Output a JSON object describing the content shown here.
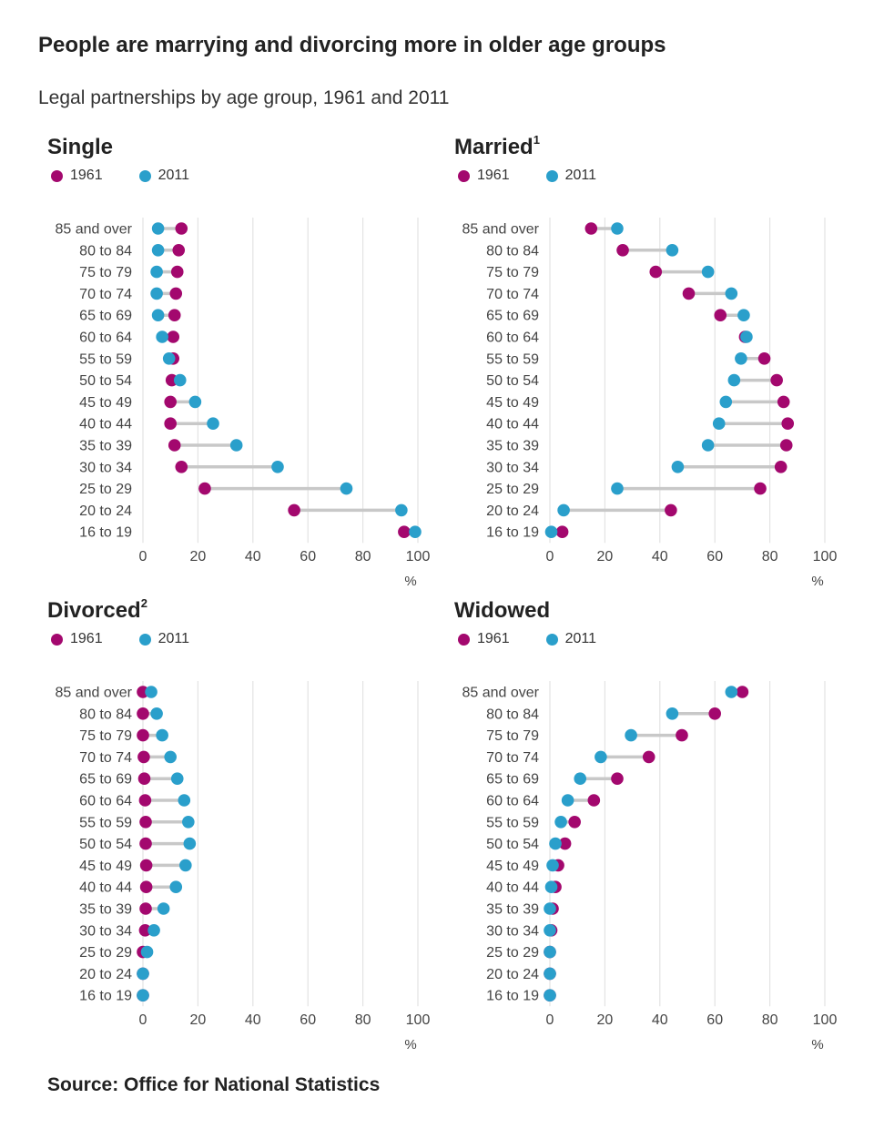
{
  "title": "People are marrying and divorcing more in older age groups",
  "subtitle": "Legal partnerships by age group, 1961 and 2011",
  "source": "Source: Office for National Statistics",
  "colors": {
    "y1961": "#a3086e",
    "y2011": "#2a9fcb",
    "connector": "#c8c8c8",
    "grid": "#e3e3e3"
  },
  "chart_data": [
    {
      "type": "dot-plot",
      "title": "Single",
      "title_sup": "",
      "legend": [
        "1961",
        "2011"
      ],
      "categories": [
        "85 and over",
        "80 to 84",
        "75 to 79",
        "70 to 74",
        "65 to 69",
        "60 to 64",
        "55 to 59",
        "50 to 54",
        "45 to 49",
        "40 to 44",
        "35 to 39",
        "30 to 34",
        "25 to 29",
        "20 to 24",
        "16 to 19"
      ],
      "series": [
        {
          "name": "1961",
          "values": [
            14,
            13,
            12.5,
            12,
            11.5,
            11,
            11,
            10.5,
            10,
            10,
            11.5,
            14,
            22.5,
            55,
            95
          ]
        },
        {
          "name": "2011",
          "values": [
            5.5,
            5.5,
            5,
            5,
            5.5,
            7,
            9.5,
            13.5,
            19,
            25.5,
            34,
            49,
            74,
            94,
            99
          ]
        }
      ],
      "xlim": [
        0,
        100
      ],
      "xticks": [
        "0",
        "20",
        "40",
        "60",
        "80",
        "100"
      ],
      "xunit": "%"
    },
    {
      "type": "dot-plot",
      "title": "Married",
      "title_sup": "1",
      "legend": [
        "1961",
        "2011"
      ],
      "categories": [
        "85 and over",
        "80 to 84",
        "75 to 79",
        "70 to 74",
        "65 to 69",
        "60 to 64",
        "55 to 59",
        "50 to 54",
        "45 to 49",
        "40 to 44",
        "35 to 39",
        "30 to 34",
        "25 to 29",
        "20 to 24",
        "16 to 19"
      ],
      "series": [
        {
          "name": "1961",
          "values": [
            15,
            26.5,
            38.5,
            50.5,
            62,
            71,
            78,
            82.5,
            85,
            86.5,
            86,
            84,
            76.5,
            44,
            4.5
          ]
        },
        {
          "name": "2011",
          "values": [
            24.5,
            44.5,
            57.5,
            66,
            70.5,
            71.5,
            69.5,
            67,
            64,
            61.5,
            57.5,
            46.5,
            24.5,
            5,
            0.5
          ]
        }
      ],
      "xlim": [
        0,
        100
      ],
      "xticks": [
        "0",
        "20",
        "40",
        "60",
        "80",
        "100"
      ],
      "xunit": "%"
    },
    {
      "type": "dot-plot",
      "title": "Divorced",
      "title_sup": "2",
      "legend": [
        "1961",
        "2011"
      ],
      "categories": [
        "85 and over",
        "80 to 84",
        "75 to 79",
        "70 to 74",
        "65 to 69",
        "60 to 64",
        "55 to 59",
        "50 to 54",
        "45 to 49",
        "40 to 44",
        "35 to 39",
        "30 to 34",
        "25 to 29",
        "20 to 24",
        "16 to 19"
      ],
      "series": [
        {
          "name": "1961",
          "values": [
            0,
            0,
            0,
            0.3,
            0.5,
            0.8,
            1,
            1,
            1.2,
            1.2,
            1,
            0.8,
            0,
            0,
            0
          ]
        },
        {
          "name": "2011",
          "values": [
            3,
            5,
            7,
            10,
            12.5,
            15,
            16.5,
            17,
            15.5,
            12,
            7.5,
            4,
            1.5,
            0,
            0
          ]
        }
      ],
      "xlim": [
        0,
        100
      ],
      "xticks": [
        "0",
        "20",
        "40",
        "60",
        "80",
        "100"
      ],
      "xunit": "%"
    },
    {
      "type": "dot-plot",
      "title": "Widowed",
      "title_sup": "",
      "legend": [
        "1961",
        "2011"
      ],
      "categories": [
        "85 and over",
        "80 to 84",
        "75 to 79",
        "70 to 74",
        "65 to 69",
        "60 to 64",
        "55 to 59",
        "50 to 54",
        "45 to 49",
        "40 to 44",
        "35 to 39",
        "30 to 34",
        "25 to 29",
        "20 to 24",
        "16 to 19"
      ],
      "series": [
        {
          "name": "1961",
          "values": [
            70,
            60,
            48,
            36,
            24.5,
            16,
            9,
            5.5,
            3,
            2,
            1,
            0.5,
            0,
            0,
            0
          ]
        },
        {
          "name": "2011",
          "values": [
            66,
            44.5,
            29.5,
            18.5,
            11,
            6.5,
            4,
            2,
            1,
            0.5,
            0,
            0,
            0,
            0,
            0
          ]
        }
      ],
      "xlim": [
        0,
        100
      ],
      "xticks": [
        "0",
        "20",
        "40",
        "60",
        "80",
        "100"
      ],
      "xunit": "%"
    }
  ]
}
